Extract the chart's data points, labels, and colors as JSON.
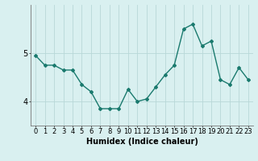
{
  "x": [
    0,
    1,
    2,
    3,
    4,
    5,
    6,
    7,
    8,
    9,
    10,
    11,
    12,
    13,
    14,
    15,
    16,
    17,
    18,
    19,
    20,
    21,
    22,
    23
  ],
  "y": [
    4.95,
    4.75,
    4.75,
    4.65,
    4.65,
    4.35,
    4.2,
    3.85,
    3.85,
    3.85,
    4.25,
    4.0,
    4.05,
    4.3,
    4.55,
    4.75,
    5.5,
    5.6,
    5.15,
    5.25,
    4.45,
    4.35,
    4.7,
    4.45
  ],
  "line_color": "#1a7a6e",
  "marker": "D",
  "marker_size": 2.0,
  "bg_color": "#d9f0f0",
  "grid_color": "#b8d8d8",
  "xlabel": "Humidex (Indice chaleur)",
  "yticks": [
    4,
    5
  ],
  "ylim": [
    3.5,
    6.0
  ],
  "xlim": [
    -0.5,
    23.5
  ],
  "xlabel_fontsize": 7,
  "tick_fontsize": 6,
  "line_width": 1.0
}
